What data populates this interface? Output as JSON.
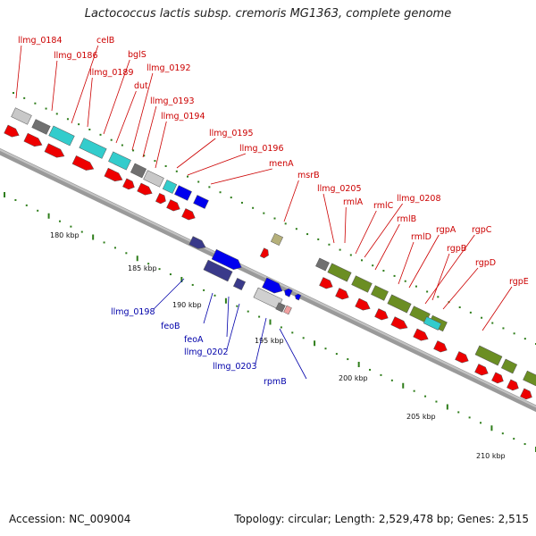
{
  "title": "Lactococcus lactis subsp. cremoris MG1363, complete genome",
  "footer": {
    "accession": "Accession: NC_009004",
    "topology": "Topology: circular; Length: 2,529,478 bp; Genes: 2,515"
  },
  "colors": {
    "forward_label": "#cc0000",
    "reverse_label": "#0000aa",
    "cds_red": "#ee0000",
    "grey_light": "#c8c8c8",
    "grey_dark": "#707070",
    "cyan": "#33cccc",
    "olive": "#6b8e23",
    "navy": "#3a3a8a",
    "blue": "#0000ee",
    "tick_green": "#2e7d1a",
    "backbone": "#888888"
  },
  "scale_labels": [
    "180 kbp",
    "185 kbp",
    "190 kbp",
    "195 kbp",
    "200 kbp",
    "205 kbp",
    "210 kbp"
  ],
  "forward_genes": [
    "llmg_0184",
    "llmg_0186",
    "celB",
    "llmg_0189",
    "bglS",
    "dut",
    "llmg_0192",
    "llmg_0193",
    "llmg_0194",
    "llmg_0195",
    "llmg_0196",
    "menA",
    "msrB",
    "llmg_0205",
    "rmlA",
    "rmlC",
    "llmg_0208",
    "rmlB",
    "rmlD",
    "rgpA",
    "rgpB",
    "rgpC",
    "rgpD",
    "rgpE"
  ],
  "reverse_genes": [
    "llmg_0198",
    "feoB",
    "feoA",
    "llmg_0202",
    "llmg_0203",
    "rpmB"
  ]
}
